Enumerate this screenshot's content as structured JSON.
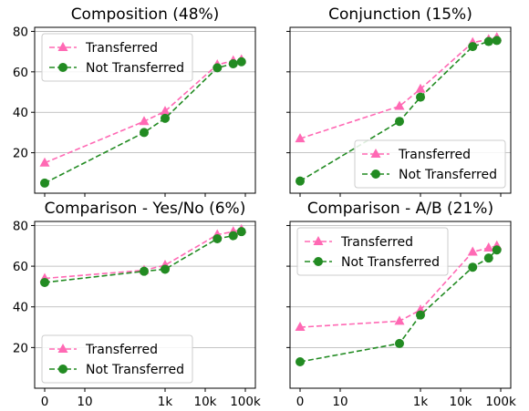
{
  "x_tick_labels": [
    "0",
    "10",
    "1k",
    "10k",
    "100k"
  ],
  "y_tick_labels": [
    "20",
    "40",
    "60",
    "80"
  ],
  "chart_data": [
    {
      "type": "line",
      "title": "Composition (48%)",
      "xlabel": "",
      "ylabel": "",
      "x_scale": "log-like (0, 10, 1k, 10k, 100k)",
      "ylim": [
        0,
        82
      ],
      "grid": "horizontal",
      "legend": "top-left",
      "series": [
        {
          "name": "Transferred",
          "color": "#ff69b4",
          "marker": "triangle",
          "linestyle": "dashed",
          "x": [
            0,
            300,
            1000,
            20000,
            50000,
            80000
          ],
          "y": [
            15,
            35.5,
            40.5,
            63.5,
            65.5,
            66
          ]
        },
        {
          "name": "Not Transferred",
          "color": "#228b22",
          "marker": "circle",
          "linestyle": "dashed",
          "x": [
            0,
            300,
            1000,
            20000,
            50000,
            80000
          ],
          "y": [
            5,
            30,
            37,
            62,
            64,
            65
          ]
        }
      ]
    },
    {
      "type": "line",
      "title": "Conjunction (15%)",
      "xlabel": "",
      "ylabel": "",
      "ylim": [
        0,
        82
      ],
      "grid": "horizontal",
      "legend": "bottom-right",
      "series": [
        {
          "name": "Transferred",
          "color": "#ff69b4",
          "marker": "triangle",
          "linestyle": "dashed",
          "x": [
            0,
            300,
            1000,
            20000,
            50000,
            80000
          ],
          "y": [
            27,
            43,
            51.5,
            74.5,
            76,
            77
          ]
        },
        {
          "name": "Not Transferred",
          "color": "#228b22",
          "marker": "circle",
          "linestyle": "dashed",
          "x": [
            0,
            300,
            1000,
            20000,
            50000,
            80000
          ],
          "y": [
            6,
            35.5,
            47.5,
            72.5,
            75,
            75.5
          ]
        }
      ]
    },
    {
      "type": "line",
      "title": "Comparison - Yes/No (6%)",
      "xlabel": "",
      "ylabel": "",
      "ylim": [
        0,
        82
      ],
      "grid": "horizontal",
      "legend": "bottom-left",
      "series": [
        {
          "name": "Transferred",
          "color": "#ff69b4",
          "marker": "triangle",
          "linestyle": "dashed",
          "x": [
            0,
            300,
            1000,
            20000,
            50000,
            80000
          ],
          "y": [
            54,
            58,
            60.5,
            75.5,
            77,
            78
          ]
        },
        {
          "name": "Not Transferred",
          "color": "#228b22",
          "marker": "circle",
          "linestyle": "dashed",
          "x": [
            0,
            300,
            1000,
            20000,
            50000,
            80000
          ],
          "y": [
            52,
            57.5,
            58.5,
            73.5,
            75,
            77
          ]
        }
      ]
    },
    {
      "type": "line",
      "title": "Comparison - A/B (21%)",
      "xlabel": "",
      "ylabel": "",
      "ylim": [
        0,
        82
      ],
      "grid": "horizontal",
      "legend": "top-left",
      "series": [
        {
          "name": "Transferred",
          "color": "#ff69b4",
          "marker": "triangle",
          "linestyle": "dashed",
          "x": [
            0,
            300,
            1000,
            20000,
            50000,
            80000
          ],
          "y": [
            30,
            33,
            38.5,
            67,
            69,
            70
          ]
        },
        {
          "name": "Not Transferred",
          "color": "#228b22",
          "marker": "circle",
          "linestyle": "dashed",
          "x": [
            0,
            300,
            1000,
            20000,
            50000,
            80000
          ],
          "y": [
            13,
            22,
            36,
            59.5,
            64,
            68
          ]
        }
      ]
    }
  ]
}
